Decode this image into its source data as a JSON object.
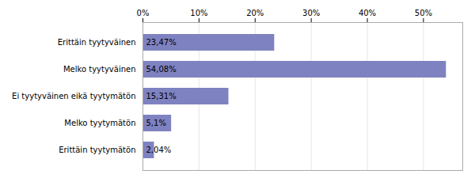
{
  "chart_data": {
    "type": "bar",
    "orientation": "horizontal",
    "categories": [
      "Erittäin tyytyväinen",
      "Melko tyytyväinen",
      "Ei tyytyväinen eikä tyytymätön",
      "Melko tyytymätön",
      "Erittäin tyytymätön"
    ],
    "values": [
      23.47,
      54.08,
      15.31,
      5.1,
      2.04
    ],
    "value_labels": [
      "23,47%",
      "54,08%",
      "15,31%",
      "5,1%",
      "2,04%"
    ],
    "color": "#7f82c0",
    "xlim": [
      0,
      57
    ],
    "xticks": [
      {
        "value": 0,
        "label": "0%"
      },
      {
        "value": 10,
        "label": "10%"
      },
      {
        "value": 20,
        "label": "20%"
      },
      {
        "value": 30,
        "label": "30%"
      },
      {
        "value": 40,
        "label": "40%"
      },
      {
        "value": 50,
        "label": "50%"
      }
    ],
    "grid": true,
    "data_labels": true
  }
}
